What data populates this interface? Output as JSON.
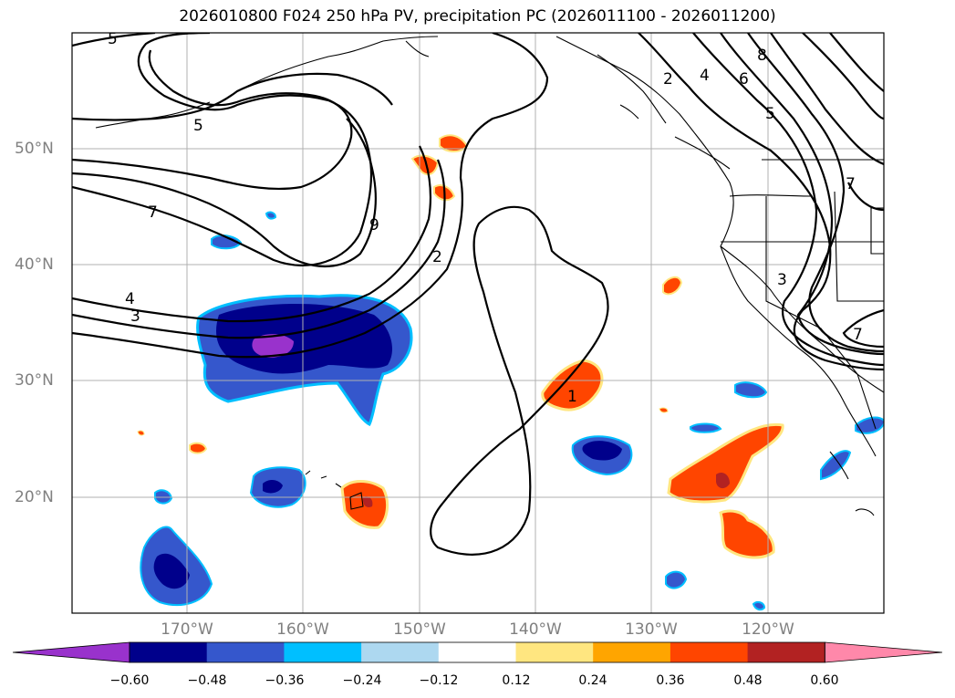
{
  "title": "2026010800 F024 250 hPa PV, precipitation PC (2026011100 - 2026011200)",
  "axes": {
    "lat_labels": [
      "50°N",
      "40°N",
      "30°N",
      "20°N"
    ],
    "lon_labels": [
      "170°W",
      "160°W",
      "150°W",
      "140°W",
      "130°W",
      "120°W"
    ]
  },
  "pv_contour_labels": [
    "5",
    "5",
    "7",
    "9",
    "4",
    "3",
    "2",
    "1",
    "2",
    "4",
    "6",
    "8",
    "5",
    "7",
    "3",
    "7"
  ],
  "colorbar": {
    "ticks": [
      "−0.60",
      "−0.48",
      "−0.36",
      "−0.24",
      "−0.12",
      "0.12",
      "0.24",
      "0.36",
      "0.48",
      "0.60"
    ],
    "colors": [
      "#9932cc",
      "#00008b",
      "#3557cc",
      "#00bfff",
      "#add8f0",
      "#ffffff",
      "#ffe680",
      "#ffa500",
      "#ff4500",
      "#b22222",
      "#ff88aa"
    ]
  },
  "colors": {
    "contour": "#000000",
    "grid": "#b0b0b0",
    "coastline": "#000000",
    "axis_label": "#808080"
  }
}
